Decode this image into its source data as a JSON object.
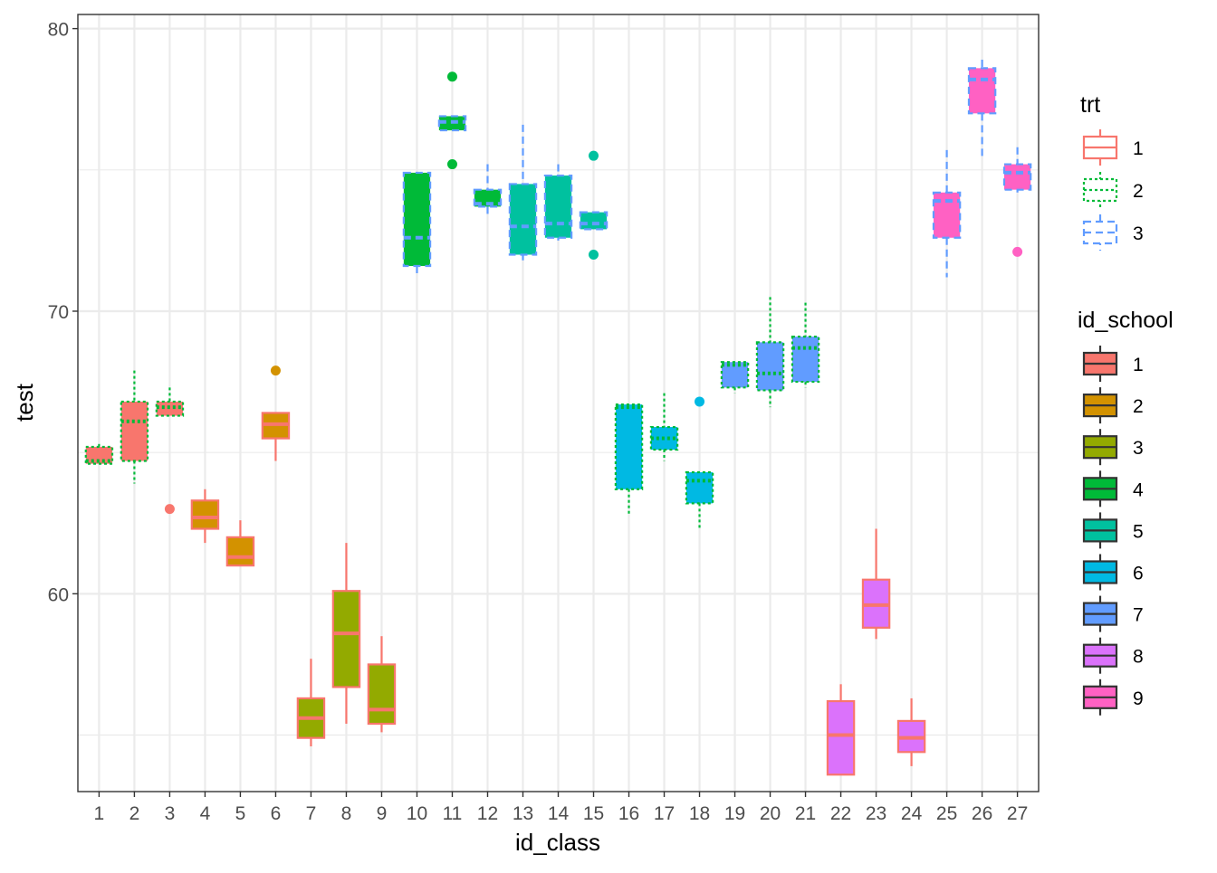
{
  "chart_data": {
    "type": "boxplot",
    "xlabel": "id_class",
    "ylabel": "test",
    "ylim": [
      53,
      80.5
    ],
    "y_ticks": [
      60,
      70,
      80
    ],
    "y_minor_ticks": [
      55,
      65,
      75
    ],
    "grid": true,
    "legend_placement": "right",
    "legends": [
      {
        "title": "trt",
        "entries": [
          {
            "label": "1",
            "color": "#F8766D",
            "dash": "solid"
          },
          {
            "label": "2",
            "color": "#00BA38",
            "dash": "dotted"
          },
          {
            "label": "3",
            "color": "#619CFF",
            "dash": "dashed"
          }
        ]
      },
      {
        "title": "id_school",
        "entries": [
          {
            "label": "1",
            "color": "#F8766D"
          },
          {
            "label": "2",
            "color": "#D39200"
          },
          {
            "label": "3",
            "color": "#93AA00"
          },
          {
            "label": "4",
            "color": "#00BA38"
          },
          {
            "label": "5",
            "color": "#00C19F"
          },
          {
            "label": "6",
            "color": "#00B9E3"
          },
          {
            "label": "7",
            "color": "#619CFF"
          },
          {
            "label": "8",
            "color": "#DB72FB"
          },
          {
            "label": "9",
            "color": "#FF61C3"
          }
        ]
      }
    ],
    "boxes": [
      {
        "id_class": "1",
        "id_school": "1",
        "trt": "2",
        "whisker_low": 64.6,
        "q1": 64.6,
        "median": 64.7,
        "q3": 65.2,
        "whisker_high": 65.3,
        "outliers": []
      },
      {
        "id_class": "2",
        "id_school": "1",
        "trt": "2",
        "whisker_low": 63.9,
        "q1": 64.7,
        "median": 66.1,
        "q3": 66.8,
        "whisker_high": 67.9,
        "outliers": []
      },
      {
        "id_class": "3",
        "id_school": "1",
        "trt": "2",
        "whisker_low": 66.3,
        "q1": 66.3,
        "median": 66.6,
        "q3": 66.8,
        "whisker_high": 67.3,
        "outliers": [
          63.0
        ]
      },
      {
        "id_class": "4",
        "id_school": "2",
        "trt": "1",
        "whisker_low": 61.8,
        "q1": 62.3,
        "median": 62.7,
        "q3": 63.3,
        "whisker_high": 63.7,
        "outliers": []
      },
      {
        "id_class": "5",
        "id_school": "2",
        "trt": "1",
        "whisker_low": 61.0,
        "q1": 61.0,
        "median": 61.3,
        "q3": 62.0,
        "whisker_high": 62.6,
        "outliers": []
      },
      {
        "id_class": "6",
        "id_school": "2",
        "trt": "1",
        "whisker_low": 64.7,
        "q1": 65.5,
        "median": 66.0,
        "q3": 66.4,
        "whisker_high": 66.4,
        "outliers": [
          67.9
        ]
      },
      {
        "id_class": "7",
        "id_school": "3",
        "trt": "1",
        "whisker_low": 54.6,
        "q1": 54.9,
        "median": 55.6,
        "q3": 56.3,
        "whisker_high": 57.7,
        "outliers": []
      },
      {
        "id_class": "8",
        "id_school": "3",
        "trt": "1",
        "whisker_low": 55.4,
        "q1": 56.7,
        "median": 58.6,
        "q3": 60.1,
        "whisker_high": 61.8,
        "outliers": []
      },
      {
        "id_class": "9",
        "id_school": "3",
        "trt": "1",
        "whisker_low": 55.1,
        "q1": 55.4,
        "median": 55.9,
        "q3": 57.5,
        "whisker_high": 58.5,
        "outliers": []
      },
      {
        "id_class": "10",
        "id_school": "4",
        "trt": "3",
        "whisker_low": 71.2,
        "q1": 71.6,
        "median": 72.6,
        "q3": 74.9,
        "whisker_high": 74.9,
        "outliers": []
      },
      {
        "id_class": "11",
        "id_school": "4",
        "trt": "3",
        "whisker_low": 76.4,
        "q1": 76.4,
        "median": 76.7,
        "q3": 76.9,
        "whisker_high": 76.9,
        "outliers": [
          78.3,
          75.2
        ]
      },
      {
        "id_class": "12",
        "id_school": "4",
        "trt": "3",
        "whisker_low": 73.3,
        "q1": 73.7,
        "median": 73.8,
        "q3": 74.3,
        "whisker_high": 75.2,
        "outliers": []
      },
      {
        "id_class": "13",
        "id_school": "5",
        "trt": "3",
        "whisker_low": 71.8,
        "q1": 72.0,
        "median": 73.0,
        "q3": 74.5,
        "whisker_high": 76.6,
        "outliers": []
      },
      {
        "id_class": "14",
        "id_school": "5",
        "trt": "3",
        "whisker_low": 72.5,
        "q1": 72.6,
        "median": 73.1,
        "q3": 74.8,
        "whisker_high": 75.2,
        "outliers": []
      },
      {
        "id_class": "15",
        "id_school": "5",
        "trt": "3",
        "whisker_low": 72.9,
        "q1": 72.9,
        "median": 73.1,
        "q3": 73.5,
        "whisker_high": 73.5,
        "outliers": [
          75.5,
          72.0
        ]
      },
      {
        "id_class": "16",
        "id_school": "6",
        "trt": "2",
        "whisker_low": 62.8,
        "q1": 63.7,
        "median": 66.6,
        "q3": 66.7,
        "whisker_high": 66.7,
        "outliers": []
      },
      {
        "id_class": "17",
        "id_school": "6",
        "trt": "2",
        "whisker_low": 64.7,
        "q1": 65.1,
        "median": 65.5,
        "q3": 65.9,
        "whisker_high": 67.1,
        "outliers": []
      },
      {
        "id_class": "18",
        "id_school": "6",
        "trt": "2",
        "whisker_low": 62.3,
        "q1": 63.2,
        "median": 64.0,
        "q3": 64.3,
        "whisker_high": 64.3,
        "outliers": [
          66.8
        ]
      },
      {
        "id_class": "19",
        "id_school": "7",
        "trt": "2",
        "whisker_low": 67.1,
        "q1": 67.3,
        "median": 68.1,
        "q3": 68.2,
        "whisker_high": 68.2,
        "outliers": []
      },
      {
        "id_class": "20",
        "id_school": "7",
        "trt": "2",
        "whisker_low": 66.6,
        "q1": 67.2,
        "median": 67.8,
        "q3": 68.9,
        "whisker_high": 70.5,
        "outliers": []
      },
      {
        "id_class": "21",
        "id_school": "7",
        "trt": "2",
        "whisker_low": 67.3,
        "q1": 67.5,
        "median": 68.7,
        "q3": 69.1,
        "whisker_high": 70.3,
        "outliers": []
      },
      {
        "id_class": "22",
        "id_school": "8",
        "trt": "1",
        "whisker_low": 53.6,
        "q1": 53.6,
        "median": 55.0,
        "q3": 56.2,
        "whisker_high": 56.8,
        "outliers": []
      },
      {
        "id_class": "23",
        "id_school": "8",
        "trt": "1",
        "whisker_low": 58.4,
        "q1": 58.8,
        "median": 59.6,
        "q3": 60.5,
        "whisker_high": 62.3,
        "outliers": []
      },
      {
        "id_class": "24",
        "id_school": "8",
        "trt": "1",
        "whisker_low": 53.9,
        "q1": 54.4,
        "median": 54.9,
        "q3": 55.5,
        "whisker_high": 56.3,
        "outliers": []
      },
      {
        "id_class": "25",
        "id_school": "9",
        "trt": "3",
        "whisker_low": 71.2,
        "q1": 72.6,
        "median": 73.9,
        "q3": 74.2,
        "whisker_high": 75.7,
        "outliers": []
      },
      {
        "id_class": "26",
        "id_school": "9",
        "trt": "3",
        "whisker_low": 75.4,
        "q1": 77.0,
        "median": 78.2,
        "q3": 78.6,
        "whisker_high": 78.9,
        "outliers": []
      },
      {
        "id_class": "27",
        "id_school": "9",
        "trt": "3",
        "whisker_low": 74.2,
        "q1": 74.3,
        "median": 74.9,
        "q3": 75.2,
        "whisker_high": 75.8,
        "outliers": [
          72.1
        ]
      }
    ]
  }
}
